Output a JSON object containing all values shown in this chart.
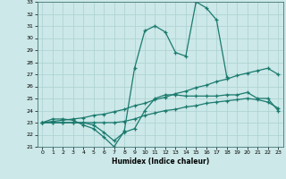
{
  "line1_x": [
    0,
    1,
    2,
    3,
    4,
    5,
    6,
    7,
    8,
    9,
    10,
    11,
    12,
    13,
    14,
    15,
    16,
    17,
    18
  ],
  "line1_y": [
    23.0,
    23.3,
    23.3,
    23.2,
    22.8,
    22.5,
    21.8,
    21.0,
    22.3,
    27.5,
    30.6,
    31.0,
    30.5,
    28.8,
    28.5,
    33.0,
    32.5,
    31.5,
    26.8
  ],
  "line2_x": [
    0,
    1,
    2,
    3,
    4,
    5,
    6,
    7,
    8,
    9,
    10,
    11,
    12,
    13,
    14,
    15,
    16,
    17,
    18,
    19,
    20,
    21,
    22,
    23
  ],
  "line2_y": [
    23.0,
    23.1,
    23.2,
    23.3,
    23.4,
    23.6,
    23.7,
    23.9,
    24.1,
    24.4,
    24.6,
    24.9,
    25.1,
    25.4,
    25.6,
    25.9,
    26.1,
    26.4,
    26.6,
    26.9,
    27.1,
    27.3,
    27.5,
    27.0
  ],
  "line3_x": [
    0,
    1,
    2,
    3,
    4,
    5,
    6,
    7,
    8,
    9,
    10,
    11,
    12,
    13,
    14,
    15,
    16,
    17,
    18,
    19,
    20,
    21,
    22,
    23
  ],
  "line3_y": [
    23.0,
    23.0,
    23.0,
    23.0,
    23.0,
    23.0,
    23.0,
    23.0,
    23.1,
    23.3,
    23.6,
    23.8,
    24.0,
    24.1,
    24.3,
    24.4,
    24.6,
    24.7,
    24.8,
    24.9,
    25.0,
    24.9,
    24.7,
    24.2
  ],
  "line4_x": [
    0,
    1,
    2,
    3,
    4,
    5,
    6,
    7,
    8,
    9,
    10,
    11,
    12,
    13,
    14,
    15,
    16,
    17,
    18,
    19,
    20,
    21,
    22,
    23
  ],
  "line4_y": [
    23.0,
    23.0,
    23.0,
    23.0,
    23.0,
    22.8,
    22.2,
    21.5,
    22.2,
    22.5,
    24.0,
    25.0,
    25.3,
    25.3,
    25.2,
    25.2,
    25.2,
    25.2,
    25.3,
    25.3,
    25.5,
    25.0,
    25.0,
    24.0
  ],
  "xlabel": "Humidex (Indice chaleur)",
  "ylim": [
    21,
    33
  ],
  "xlim": [
    -0.5,
    23.5
  ],
  "yticks": [
    21,
    22,
    23,
    24,
    25,
    26,
    27,
    28,
    29,
    30,
    31,
    32,
    33
  ],
  "xticks": [
    0,
    1,
    2,
    3,
    4,
    5,
    6,
    7,
    8,
    9,
    10,
    11,
    12,
    13,
    14,
    15,
    16,
    17,
    18,
    19,
    20,
    21,
    22,
    23
  ],
  "line_color": "#1a7a6e",
  "bg_color": "#cce8e8",
  "grid_color": "#aad0d0"
}
